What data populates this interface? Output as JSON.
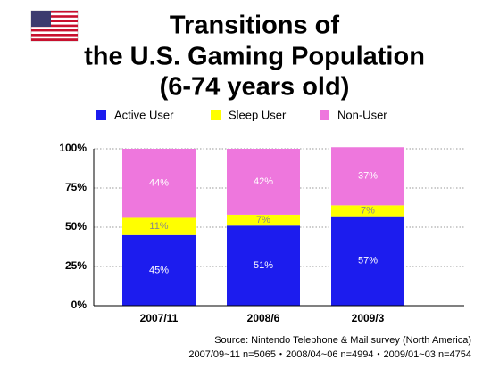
{
  "chart_data": {
    "type": "stacked_bar",
    "title": [
      "Transitions of",
      "the U.S. Gaming Population",
      "(6-74 years old)"
    ],
    "categories": [
      "2007/11",
      "2008/6",
      "2009/3"
    ],
    "series": [
      {
        "name": "Active User",
        "color": "#1c1cee",
        "values": [
          45,
          51,
          57
        ],
        "value_labels": [
          "45%",
          "51%",
          "57%"
        ]
      },
      {
        "name": "Sleep User",
        "color": "#ffff00",
        "values": [
          11,
          7,
          7
        ],
        "value_labels": [
          "11%",
          "7%",
          "7%"
        ]
      },
      {
        "name": "Non-User",
        "color": "#ee77dd",
        "values": [
          44,
          42,
          37
        ],
        "value_labels": [
          "44%",
          "42%",
          "37%"
        ]
      }
    ],
    "ylim": [
      0,
      100
    ],
    "yticks": [
      {
        "value": 0,
        "label": "0%"
      },
      {
        "value": 25,
        "label": "25%"
      },
      {
        "value": 50,
        "label": "50%"
      },
      {
        "value": 75,
        "label": "75%"
      },
      {
        "value": 100,
        "label": "100%"
      }
    ],
    "grid": true,
    "legend": "top",
    "notes": [
      "Source: Nintendo Telephone & Mail survey (North America)",
      "2007/09~11 n=5065・2008/04~06 n=4994・2009/01~03 n=4754"
    ]
  }
}
